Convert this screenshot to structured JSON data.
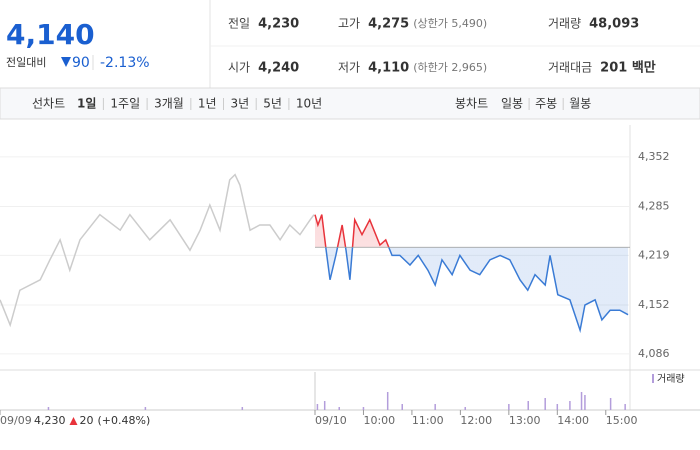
{
  "header": {
    "price": "4,140",
    "change_label": "전일대비",
    "change": "90",
    "change_rate": "-2.13%"
  },
  "stats": [
    {
      "label": "전일",
      "value": "4,230",
      "color": "#222222"
    },
    {
      "label": "고가",
      "value": "4,275",
      "note": "(상한가 5,490)",
      "color": "#e8333b"
    },
    {
      "label": "거래량",
      "value": "48,093",
      "color": "#222222"
    },
    {
      "label": "시가",
      "value": "4,240",
      "color": "#e8333b"
    },
    {
      "label": "저가",
      "value": "4,110",
      "note": "(하한가 2,965)",
      "color": "#1a5fd0"
    },
    {
      "label": "거래대금",
      "value": "201 백만",
      "color": "#222222"
    }
  ],
  "tabs": {
    "line_label": "선차트",
    "line_periods": [
      "1일",
      "1주일",
      "3개월",
      "1년",
      "3년",
      "5년",
      "10년"
    ],
    "selected": 0,
    "candle_label": "봉차트",
    "candle_periods": [
      "일봉",
      "주봉",
      "월봉"
    ]
  },
  "chart_data": {
    "type": "line",
    "xlim": [
      0,
      13
    ],
    "ylim": [
      4067,
      4395
    ],
    "xticks": [
      {
        "value": 0,
        "label": "09/09"
      },
      {
        "value": 6.5,
        "label": "09/10"
      },
      {
        "value": 7.5,
        "label": "10:00"
      },
      {
        "value": 8.5,
        "label": "11:00"
      },
      {
        "value": 9.5,
        "label": "12:00"
      },
      {
        "value": 10.5,
        "label": "13:00"
      },
      {
        "value": 11.5,
        "label": "14:00"
      },
      {
        "value": 12.5,
        "label": "15:00"
      }
    ],
    "yticks": [
      {
        "value": 4352,
        "label": "4,352"
      },
      {
        "value": 4285,
        "label": "4,285"
      },
      {
        "value": 4219,
        "label": "4,219"
      },
      {
        "value": 4152,
        "label": "4,152"
      },
      {
        "value": 4086,
        "label": "4,086"
      }
    ],
    "grid": true,
    "baseline": 4230,
    "up_color": "#e8333b",
    "down_color": "#3a7bd5",
    "prev_close": {
      "price": "4,230",
      "change": "20",
      "change_rate": "(+0.48%)"
    },
    "series": [
      {
        "color": "#cccccc",
        "x": [
          0,
          0.21,
          0.41,
          0.83,
          1.03,
          1.24,
          1.44,
          1.65,
          2.06,
          2.48,
          2.68,
          3.09,
          3.51,
          3.92,
          4.13,
          4.33,
          4.54,
          4.74,
          4.85,
          4.95,
          5.16,
          5.36,
          5.57,
          5.78,
          5.98,
          6.19,
          6.4,
          6.48
        ],
        "values": [
          4159,
          4125,
          4172,
          4186,
          4213,
          4240,
          4199,
          4240,
          4274,
          4253,
          4274,
          4240,
          4267,
          4226,
          4253,
          4287,
          4253,
          4321,
          4328,
          4314,
          4253,
          4260,
          4260,
          4240,
          4260,
          4247,
          4267,
          4274
        ]
      },
      {
        "x": [
          6.5,
          6.56,
          6.64,
          6.73,
          6.81,
          6.93,
          7.06,
          7.14,
          7.22,
          7.32,
          7.47,
          7.63,
          7.84,
          7.96,
          8.09,
          8.25,
          8.46,
          8.63,
          8.83,
          8.98,
          9.12,
          9.33,
          9.49,
          9.7,
          9.9,
          10.11,
          10.32,
          10.52,
          10.73,
          10.89,
          11.04,
          11.25,
          11.35,
          11.51,
          11.76,
          11.97,
          12.07,
          12.28,
          12.42,
          12.59,
          12.79,
          12.96
        ],
        "values": [
          4274,
          4260,
          4274,
          4226,
          4186,
          4219,
          4260,
          4226,
          4186,
          4267,
          4247,
          4267,
          4233,
          4240,
          4219,
          4219,
          4206,
          4219,
          4199,
          4179,
          4213,
          4193,
          4219,
          4199,
          4193,
          4213,
          4219,
          4213,
          4186,
          4172,
          4193,
          4179,
          4219,
          4166,
          4159,
          4118,
          4152,
          4159,
          4132,
          4145,
          4145,
          4139
        ]
      }
    ],
    "volume": {
      "label": "거래량",
      "color": "#b39ddb",
      "ylim": [
        0,
        10
      ],
      "x": [
        1.0,
        3.0,
        5.0,
        6.55,
        6.7,
        7.0,
        7.5,
        8.0,
        8.3,
        8.98,
        9.6,
        10.5,
        10.9,
        11.25,
        11.5,
        11.76,
        12.0,
        12.07,
        12.6,
        12.9
      ],
      "values": [
        1,
        1,
        1,
        2,
        3,
        1,
        1,
        6,
        2,
        2,
        1,
        2,
        3,
        4,
        2,
        3,
        6,
        5,
        4,
        2
      ]
    }
  }
}
